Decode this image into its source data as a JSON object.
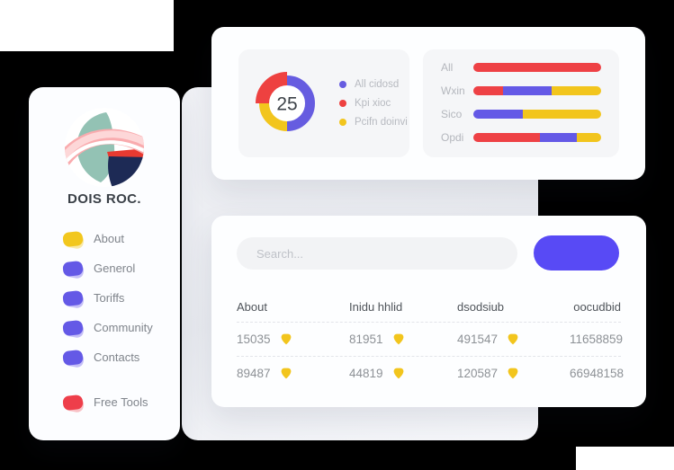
{
  "brand": {
    "title": "DOIS ROC."
  },
  "sidebar": {
    "items": [
      {
        "label": "About",
        "color": "#f2c71e",
        "echo": "#f6d95e"
      },
      {
        "label": "Generol",
        "color": "#6459e6",
        "echo": "#978df0"
      },
      {
        "label": "Toriffs",
        "color": "#6459e6",
        "echo": "#978df0"
      },
      {
        "label": "Community",
        "color": "#6459e6",
        "echo": "#978df0"
      },
      {
        "label": "Contacts",
        "color": "#6459e6",
        "echo": "#978df0"
      }
    ],
    "footer_item": {
      "label": "Free Tools",
      "color": "#ee3e4a",
      "echo": "#f58e96"
    }
  },
  "chart_data": [
    {
      "type": "pie",
      "variant": "donut",
      "center_label": "25",
      "segments": [
        {
          "name": "All cidosd",
          "value": 50,
          "color": "#665ce0",
          "thick": false
        },
        {
          "name": "Pcifn doinvi",
          "value": 25,
          "color": "#f2c51d",
          "thick": false
        },
        {
          "name": "Kpi xioc",
          "value": 25,
          "color": "#ee4140",
          "thick": true
        }
      ],
      "legend": [
        {
          "label": "All cidosd",
          "color": "#665ce0"
        },
        {
          "label": "Kpi xioc",
          "color": "#ee4140"
        },
        {
          "label": "Pcifn doinvi",
          "color": "#f2c51d"
        }
      ],
      "legend_position": "right"
    },
    {
      "type": "bar",
      "orientation": "horizontal",
      "stacked": true,
      "unit": "percent",
      "categories": [
        "All",
        "Wxin",
        "Sico",
        "Opdi"
      ],
      "series": [
        {
          "name": "red",
          "color": "#ee4145",
          "values": [
            100,
            23,
            0,
            52
          ]
        },
        {
          "name": "purple",
          "color": "#6459e6",
          "values": [
            0,
            38,
            39,
            29
          ]
        },
        {
          "name": "yellow",
          "color": "#f2c51d",
          "values": [
            0,
            39,
            61,
            19
          ]
        }
      ]
    }
  ],
  "table": {
    "search_placeholder": "Search...",
    "button_label": "",
    "columns": [
      "About",
      "Inidu hhlid",
      "dsodsiub",
      "oocudbid"
    ],
    "rows": [
      [
        "15035",
        "81951",
        "491547",
        "11658859"
      ],
      [
        "89487",
        "44819",
        "120587",
        "66948158"
      ]
    ]
  },
  "icons": {
    "shield_color": "#f2c51d"
  },
  "colors": {
    "accent": "#584af5",
    "red": "#ee4145",
    "yellow": "#f2c51d",
    "purple": "#6459e6"
  }
}
